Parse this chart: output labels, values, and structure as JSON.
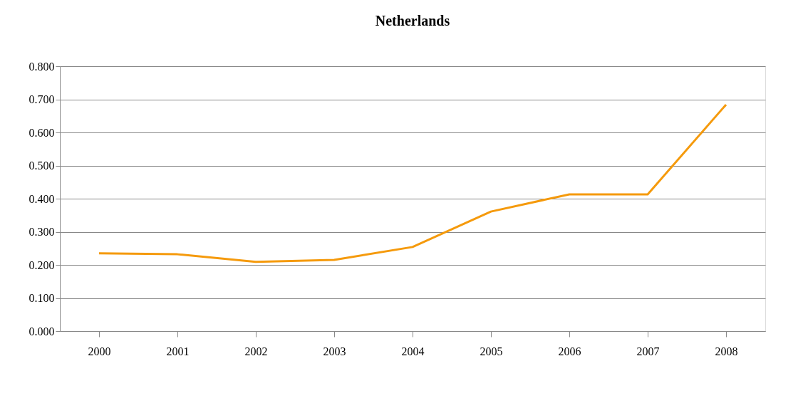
{
  "chart_data": {
    "type": "line",
    "title": "Netherlands",
    "categories": [
      "2000",
      "2001",
      "2002",
      "2003",
      "2004",
      "2005",
      "2006",
      "2007",
      "2008"
    ],
    "series": [
      {
        "color": "#f59a0c",
        "values": [
          0.235,
          0.232,
          0.209,
          0.215,
          0.254,
          0.361,
          0.413,
          0.413,
          0.684
        ]
      }
    ],
    "ylim": [
      0,
      0.8
    ],
    "yticks": [
      {
        "value": 0,
        "label": "0.000"
      },
      {
        "value": 0.1,
        "label": "0.100"
      },
      {
        "value": 0.2,
        "label": "0.200"
      },
      {
        "value": 0.3,
        "label": "0.300"
      },
      {
        "value": 0.4,
        "label": "0.400"
      },
      {
        "value": 0.5,
        "label": "0.500"
      },
      {
        "value": 0.6,
        "label": "0.600"
      },
      {
        "value": 0.7,
        "label": "0.700"
      },
      {
        "value": 0.8,
        "label": "0.800"
      }
    ],
    "grid": "y",
    "marker": "none",
    "line_style": "solid"
  }
}
